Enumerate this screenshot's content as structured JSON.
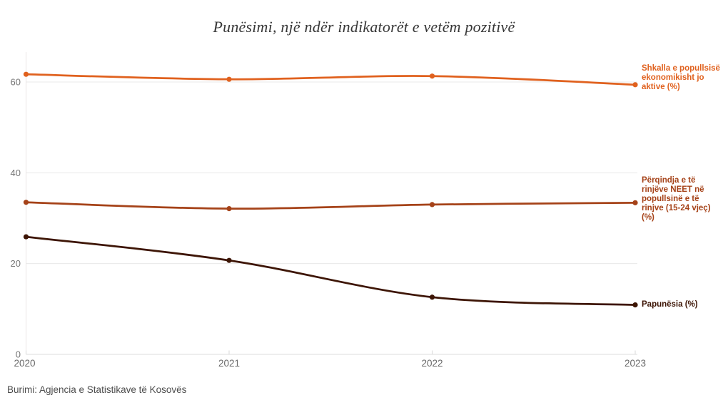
{
  "title": "Punësimi, një ndër indikatorët e vetëm pozitivë",
  "source_note": "Burimi: Agjencia e Statistikave të Kosovës",
  "colors": {
    "background": "#FFFFFF",
    "title_text": "#383838",
    "grid_line": "#E8E8E8",
    "axis_line": "#DCDCDC",
    "y_axis_line": "#EBE6E6",
    "tick_mark": "#D9D9D9",
    "y_tick_text": "#757575",
    "x_tick_text": "#696969",
    "source_text": "#4D4D4D",
    "inactive_series": "#E0611E",
    "neet_series": "#A54218",
    "unemployment_series": "#3D1505"
  },
  "chart_data": {
    "type": "line",
    "x": [
      "2020",
      "2021",
      "2022",
      "2023"
    ],
    "series": [
      {
        "name": "Shkalla e popullsisë ekonomikisht jo aktive (%)",
        "color": "#E0611E",
        "values": [
          61.7,
          60.6,
          61.3,
          59.4
        ]
      },
      {
        "name": "Përqindja e të rinjëve NEET në popullsinë e të rinjve (15-24 vjeç) (%)",
        "color": "#A54218",
        "values": [
          33.5,
          32.1,
          33.0,
          33.4
        ]
      },
      {
        "name": "Papunësia (%)",
        "color": "#3D1505",
        "values": [
          25.9,
          20.7,
          12.6,
          10.9
        ]
      }
    ],
    "title": "Punësimi, një ndër indikatorët e vetëm pozitivë",
    "xlabel": "",
    "ylabel": "",
    "ylim": [
      0,
      66
    ],
    "yticks": [
      0,
      20,
      40,
      60
    ],
    "grid": true,
    "curve": "smooth",
    "legend_position": "right",
    "point_markers": true
  }
}
